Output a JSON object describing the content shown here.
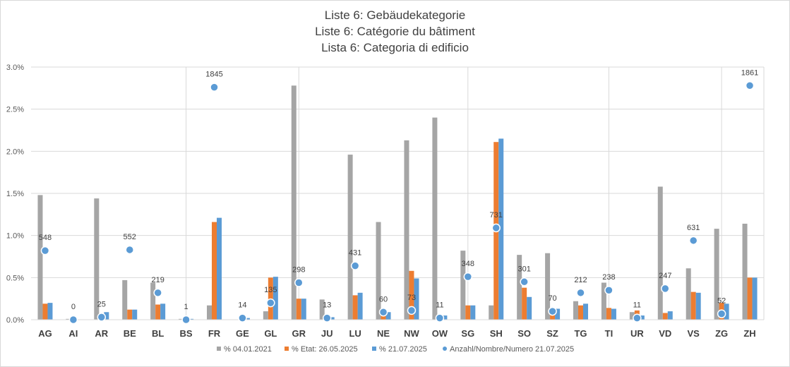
{
  "chart_data": {
    "type": "bar",
    "title_lines": [
      "Liste 6: Gebäudekategorie",
      "Liste 6: Catégorie du bâtiment",
      "Lista 6: Categoria di edificio"
    ],
    "categories": [
      "AG",
      "AI",
      "AR",
      "BE",
      "BL",
      "BS",
      "FR",
      "GE",
      "GL",
      "GR",
      "JU",
      "LU",
      "NE",
      "NW",
      "OW",
      "SG",
      "SH",
      "SO",
      "SZ",
      "TG",
      "TI",
      "UR",
      "VD",
      "VS",
      "ZG",
      "ZH"
    ],
    "series": [
      {
        "name": "% 04.01.2021",
        "color": "#a5a5a5",
        "values": [
          1.48,
          0.01,
          1.44,
          0.47,
          0.44,
          0.01,
          0.17,
          0.0,
          0.1,
          2.78,
          0.24,
          1.96,
          1.16,
          2.13,
          2.4,
          0.82,
          0.17,
          0.77,
          0.79,
          0.22,
          0.44,
          0.09,
          1.58,
          0.61,
          1.08,
          1.14
        ]
      },
      {
        "name": "% Etat: 26.05.2025",
        "color": "#ed7d31",
        "values": [
          0.19,
          0.0,
          0.07,
          0.12,
          0.18,
          0.0,
          1.16,
          0.02,
          0.5,
          0.25,
          0.03,
          0.29,
          0.07,
          0.58,
          0.04,
          0.17,
          2.11,
          0.38,
          0.1,
          0.17,
          0.14,
          0.11,
          0.08,
          0.33,
          0.2,
          0.5
        ]
      },
      {
        "name": "% 21.07.2025",
        "color": "#5b9bd5",
        "values": [
          0.2,
          0.0,
          0.09,
          0.12,
          0.19,
          0.01,
          1.21,
          0.02,
          0.51,
          0.25,
          0.03,
          0.32,
          0.09,
          0.49,
          0.05,
          0.17,
          2.15,
          0.27,
          0.13,
          0.19,
          0.13,
          0.05,
          0.1,
          0.32,
          0.19,
          0.5
        ]
      }
    ],
    "points": {
      "name": "Anzahl/Nombre/Numero 21.07.2025",
      "color": "#5b9bd5",
      "counts": [
        548,
        0,
        25,
        552,
        219,
        1,
        1845,
        14,
        135,
        298,
        13,
        431,
        60,
        73,
        11,
        348,
        731,
        301,
        70,
        212,
        238,
        11,
        247,
        631,
        52,
        1861
      ],
      "y_positions_percent": [
        0.82,
        0.0,
        0.03,
        0.83,
        0.32,
        0.0,
        2.76,
        0.02,
        0.2,
        0.44,
        0.02,
        0.64,
        0.09,
        0.11,
        0.02,
        0.51,
        1.09,
        0.45,
        0.1,
        0.32,
        0.35,
        0.02,
        0.37,
        0.94,
        0.07,
        2.78
      ]
    },
    "y_ticks": [
      "0.0%",
      "0.5%",
      "1.0%",
      "1.5%",
      "2.0%",
      "2.5%",
      "3.0%"
    ],
    "ylim": [
      0,
      3.0
    ],
    "grid": true,
    "legend_position": "bottom"
  }
}
